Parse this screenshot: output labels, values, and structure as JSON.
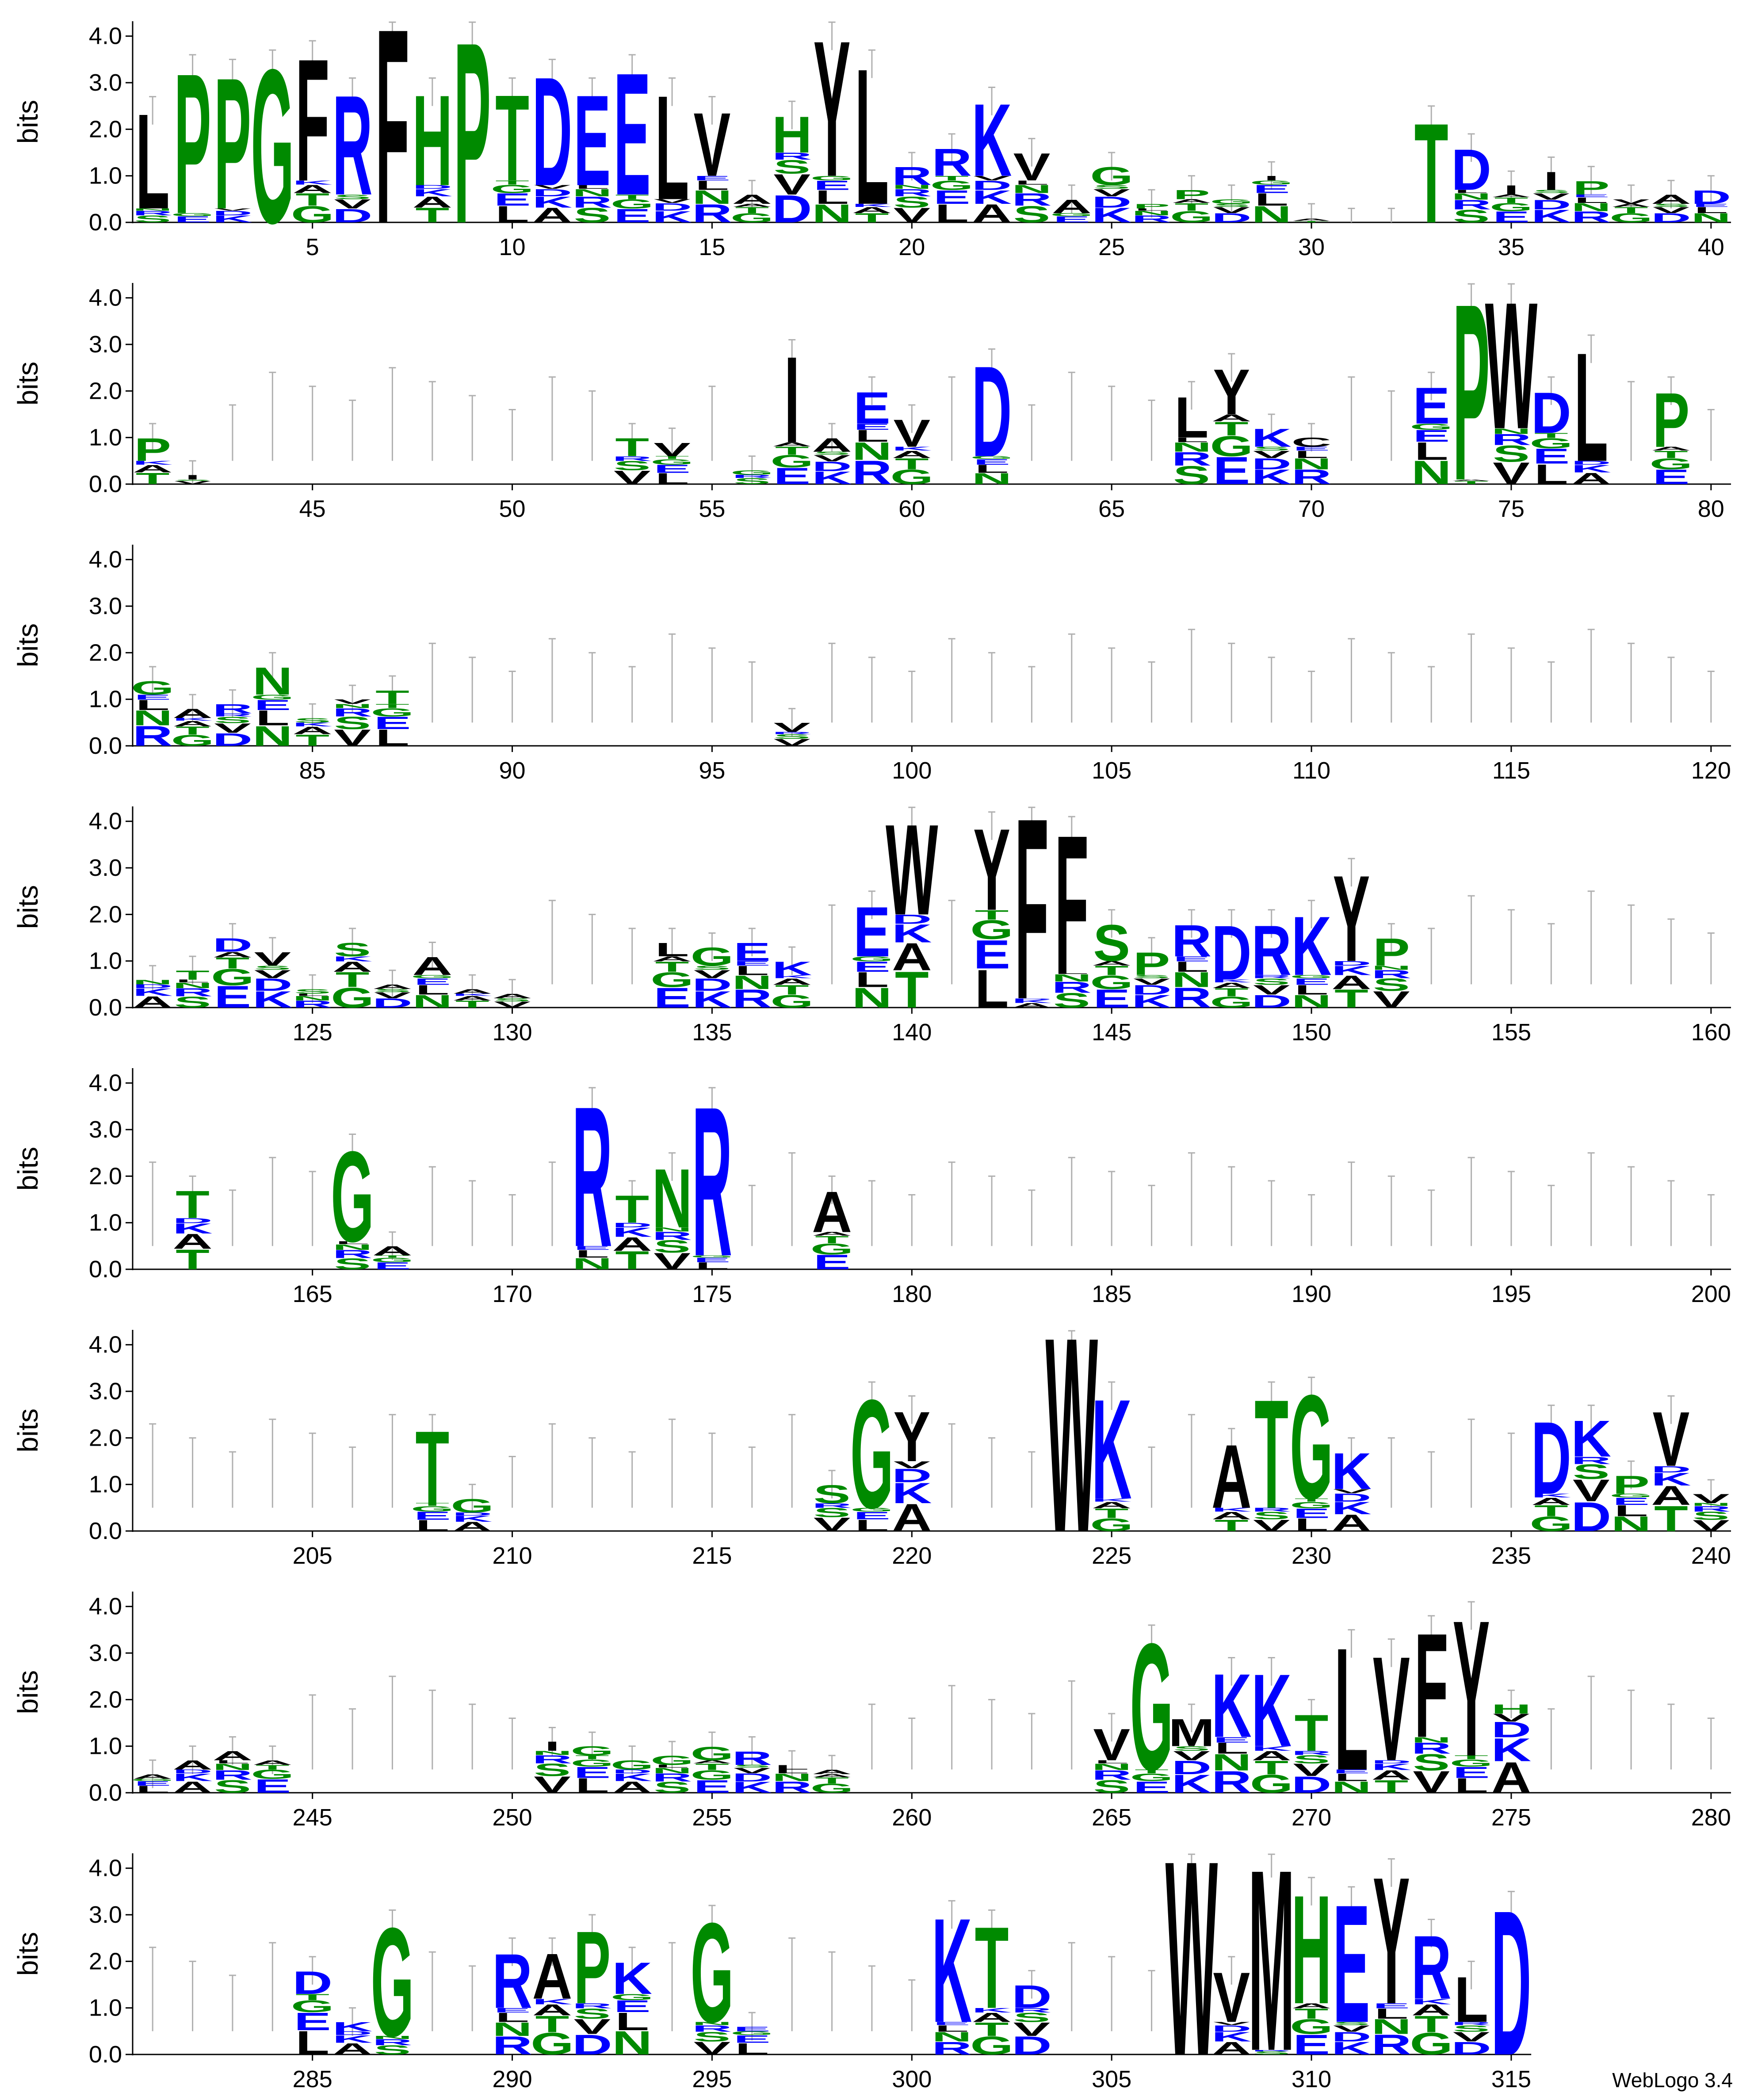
{
  "chart_data": {
    "type": "sequence-logo",
    "ylabel": "bits",
    "yticks": [
      "0.0",
      "1.0",
      "2.0",
      "3.0",
      "4.0"
    ],
    "ylim": [
      0,
      4.32
    ],
    "xlim": [
      1,
      315
    ],
    "rows": [
      {
        "start": 1,
        "end": 40,
        "ticks": [
          5,
          10,
          15,
          20,
          25,
          30,
          35,
          40
        ]
      },
      {
        "start": 41,
        "end": 80,
        "ticks": [
          45,
          50,
          55,
          60,
          65,
          70,
          75,
          80
        ]
      },
      {
        "start": 81,
        "end": 120,
        "ticks": [
          85,
          90,
          95,
          100,
          105,
          110,
          115,
          120
        ]
      },
      {
        "start": 121,
        "end": 160,
        "ticks": [
          125,
          130,
          135,
          140,
          145,
          150,
          155,
          160
        ]
      },
      {
        "start": 161,
        "end": 200,
        "ticks": [
          165,
          170,
          175,
          180,
          185,
          190,
          195,
          200
        ]
      },
      {
        "start": 201,
        "end": 240,
        "ticks": [
          205,
          210,
          215,
          220,
          225,
          230,
          235,
          240
        ]
      },
      {
        "start": 241,
        "end": 280,
        "ticks": [
          245,
          250,
          255,
          260,
          265,
          270,
          275,
          280
        ]
      },
      {
        "start": 281,
        "end": 315,
        "ticks": [
          285,
          290,
          295,
          300,
          305,
          310,
          315
        ]
      }
    ],
    "residue_colors": {
      "hydrophobic": "#000000",
      "polar": "#008a00",
      "charged": "#0000ff",
      "errorbar": "#b0b0b0"
    },
    "color_groups": {
      "black": "AVLIMFWPCY",
      "green": "GSTNQHP",
      "blue": "DEKR"
    },
    "positions": [
      {
        "pos": 1,
        "top": "L",
        "top_bits": 2.1,
        "total": 2.4
      },
      {
        "pos": 2,
        "top": "P",
        "top_bits": 3.1,
        "total": 3.3
      },
      {
        "pos": 3,
        "top": "P",
        "top_bits": 2.9,
        "total": 3.2
      },
      {
        "pos": 4,
        "top": "G",
        "top_bits": 3.4,
        "total": 3.4
      },
      {
        "pos": 5,
        "top": "F",
        "top_bits": 2.7,
        "total": 3.6
      },
      {
        "pos": 6,
        "top": "R",
        "top_bits": 2.2,
        "total": 2.8
      },
      {
        "pos": 7,
        "top": "F",
        "top_bits": 4.3,
        "total": 4.3
      },
      {
        "pos": 8,
        "top": "H",
        "top_bits": 2.0,
        "total": 2.8
      },
      {
        "pos": 9,
        "top": "P",
        "top_bits": 4.0,
        "total": 4.0
      },
      {
        "pos": 10,
        "top": "T",
        "top_bits": 1.9,
        "total": 2.8
      },
      {
        "pos": 11,
        "top": "D",
        "top_bits": 2.4,
        "total": 3.2
      },
      {
        "pos": 12,
        "top": "E",
        "top_bits": 2.0,
        "total": 2.8
      },
      {
        "pos": 13,
        "top": "E",
        "top_bits": 2.7,
        "total": 3.3
      },
      {
        "pos": 14,
        "top": "L",
        "top_bits": 2.3,
        "total": 2.8
      },
      {
        "pos": 15,
        "top": "V",
        "top_bits": 1.4,
        "total": 2.4
      },
      {
        "pos": 16,
        "top": "A",
        "top_bits": 0.2,
        "total": 0.6
      },
      {
        "pos": 17,
        "top": "H",
        "top_bits": 0.8,
        "total": 2.3
      },
      {
        "pos": 18,
        "top": "Y",
        "top_bits": 3.0,
        "total": 4.0
      },
      {
        "pos": 19,
        "top": "L",
        "top_bits": 3.0,
        "total": 3.4
      },
      {
        "pos": 20,
        "top": "R",
        "top_bits": 0.4,
        "total": 1.2
      },
      {
        "pos": 21,
        "top": "R",
        "top_bits": 0.6,
        "total": 1.6
      },
      {
        "pos": 22,
        "top": "K",
        "top_bits": 1.6,
        "total": 2.6
      },
      {
        "pos": 23,
        "top": "V",
        "top_bits": 0.6,
        "total": 1.5
      },
      {
        "pos": 24,
        "top": "A",
        "top_bits": 0.3,
        "total": 0.5
      },
      {
        "pos": 25,
        "top": "G",
        "top_bits": 0.4,
        "total": 1.2
      },
      {
        "pos": 26,
        "top": "P",
        "top_bits": 0.1,
        "total": 0.4
      },
      {
        "pos": 27,
        "top": "P",
        "top_bits": 0.2,
        "total": 0.7
      },
      {
        "pos": 28,
        "top": "G",
        "top_bits": 0.1,
        "total": 0.5
      },
      {
        "pos": 29,
        "top": "I",
        "top_bits": 0.1,
        "total": 1.0
      },
      {
        "pos": 30,
        "top": "A",
        "top_bits": 0.05,
        "total": 0.1
      },
      {
        "pos": 31,
        "top": "-",
        "top_bits": 0.0,
        "total": 0.0
      },
      {
        "pos": 32,
        "top": "-",
        "top_bits": 0.0,
        "total": 0.0
      },
      {
        "pos": 33,
        "top": "T",
        "top_bits": 2.2,
        "total": 2.2
      },
      {
        "pos": 34,
        "top": "D",
        "top_bits": 0.9,
        "total": 1.6
      },
      {
        "pos": 35,
        "top": "I",
        "top_bits": 0.2,
        "total": 0.8
      },
      {
        "pos": 36,
        "top": "I",
        "top_bits": 0.4,
        "total": 1.1
      },
      {
        "pos": 37,
        "top": "P",
        "top_bits": 0.3,
        "total": 0.9
      },
      {
        "pos": 38,
        "top": "V",
        "top_bits": 0.1,
        "total": 0.5
      },
      {
        "pos": 39,
        "top": "A",
        "top_bits": 0.2,
        "total": 0.6
      },
      {
        "pos": 40,
        "top": "D",
        "top_bits": 0.3,
        "total": 0.7
      },
      {
        "pos": 41,
        "top": "P",
        "top_bits": 0.5,
        "total": 1.0
      },
      {
        "pos": 42,
        "top": "I",
        "top_bits": 0.1,
        "total": 0.2
      },
      {
        "pos": 53,
        "top": "T",
        "top_bits": 0.4,
        "total": 1.0
      },
      {
        "pos": 54,
        "top": "V",
        "top_bits": 0.3,
        "total": 0.9
      },
      {
        "pos": 56,
        "top": "G",
        "top_bits": 0.1,
        "total": 0.3
      },
      {
        "pos": 57,
        "top": "I",
        "top_bits": 1.9,
        "total": 2.8
      },
      {
        "pos": 58,
        "top": "A",
        "top_bits": 0.3,
        "total": 1.0
      },
      {
        "pos": 59,
        "top": "E",
        "top_bits": 0.7,
        "total": 2.0
      },
      {
        "pos": 60,
        "top": "V",
        "top_bits": 0.6,
        "total": 1.4
      },
      {
        "pos": 62,
        "top": "D",
        "top_bits": 2.0,
        "total": 2.6
      },
      {
        "pos": 67,
        "top": "L",
        "top_bits": 0.9,
        "total": 1.9
      },
      {
        "pos": 68,
        "top": "Y",
        "top_bits": 1.0,
        "total": 2.5
      },
      {
        "pos": 69,
        "top": "K",
        "top_bits": 0.4,
        "total": 1.2
      },
      {
        "pos": 70,
        "top": "C",
        "top_bits": 0.2,
        "total": 1.0
      },
      {
        "pos": 73,
        "top": "E",
        "top_bits": 0.8,
        "total": 2.1
      },
      {
        "pos": 74,
        "top": "P",
        "top_bits": 3.9,
        "total": 4.0
      },
      {
        "pos": 75,
        "top": "W",
        "top_bits": 2.8,
        "total": 4.0
      },
      {
        "pos": 76,
        "top": "D",
        "top_bits": 0.9,
        "total": 2.0
      },
      {
        "pos": 77,
        "top": "L",
        "top_bits": 2.4,
        "total": 2.9
      },
      {
        "pos": 79,
        "top": "P",
        "top_bits": 1.2,
        "total": 2.0
      },
      {
        "pos": 81,
        "top": "G",
        "top_bits": 0.3,
        "total": 1.4
      },
      {
        "pos": 82,
        "top": "A",
        "top_bits": 0.2,
        "total": 0.8
      },
      {
        "pos": 83,
        "top": "R",
        "top_bits": 0.2,
        "total": 0.9
      },
      {
        "pos": 84,
        "top": "N",
        "top_bits": 0.6,
        "total": 1.7
      },
      {
        "pos": 85,
        "top": "S",
        "top_bits": 0.1,
        "total": 0.6
      },
      {
        "pos": 86,
        "top": "V",
        "top_bits": 0.1,
        "total": 1.0
      },
      {
        "pos": 87,
        "top": "T",
        "top_bits": 0.3,
        "total": 1.2
      },
      {
        "pos": 97,
        "top": "V",
        "top_bits": 0.2,
        "total": 0.5
      },
      {
        "pos": 121,
        "top": "N",
        "top_bits": 0.1,
        "total": 0.6
      },
      {
        "pos": 122,
        "top": "T",
        "top_bits": 0.2,
        "total": 0.8
      },
      {
        "pos": 123,
        "top": "D",
        "top_bits": 0.3,
        "total": 1.5
      },
      {
        "pos": 124,
        "top": "V",
        "top_bits": 0.3,
        "total": 1.2
      },
      {
        "pos": 125,
        "top": "S",
        "top_bits": 0.1,
        "total": 0.4
      },
      {
        "pos": 126,
        "top": "S",
        "top_bits": 0.3,
        "total": 1.4
      },
      {
        "pos": 127,
        "top": "A",
        "top_bits": 0.1,
        "total": 0.5
      },
      {
        "pos": 128,
        "top": "A",
        "top_bits": 0.4,
        "total": 1.1
      },
      {
        "pos": 129,
        "top": "A",
        "top_bits": 0.1,
        "total": 0.4
      },
      {
        "pos": 130,
        "top": "A",
        "top_bits": 0.1,
        "total": 0.3
      },
      {
        "pos": 134,
        "top": "L",
        "top_bits": 0.3,
        "total": 1.4
      },
      {
        "pos": 135,
        "top": "G",
        "top_bits": 0.4,
        "total": 1.3
      },
      {
        "pos": 136,
        "top": "E",
        "top_bits": 0.4,
        "total": 1.4
      },
      {
        "pos": 137,
        "top": "K",
        "top_bits": 0.3,
        "total": 1.0
      },
      {
        "pos": 139,
        "top": "E",
        "top_bits": 1.1,
        "total": 2.2
      },
      {
        "pos": 140,
        "top": "W",
        "top_bits": 2.0,
        "total": 4.0
      },
      {
        "pos": 142,
        "top": "Y",
        "top_bits": 1.8,
        "total": 3.9
      },
      {
        "pos": 143,
        "top": "F",
        "top_bits": 4.0,
        "total": 4.2
      },
      {
        "pos": 144,
        "top": "F",
        "top_bits": 3.0,
        "total": 3.8
      },
      {
        "pos": 145,
        "top": "S",
        "top_bits": 0.8,
        "total": 1.8
      },
      {
        "pos": 146,
        "top": "P",
        "top_bits": 0.5,
        "total": 1.2
      },
      {
        "pos": 147,
        "top": "R",
        "top_bits": 0.7,
        "total": 1.8
      },
      {
        "pos": 148,
        "top": "D",
        "top_bits": 1.2,
        "total": 1.8
      },
      {
        "pos": 149,
        "top": "R",
        "top_bits": 1.1,
        "total": 1.8
      },
      {
        "pos": 150,
        "top": "K",
        "top_bits": 1.3,
        "total": 2.0
      },
      {
        "pos": 151,
        "top": "Y",
        "top_bits": 1.9,
        "total": 2.9
      },
      {
        "pos": 152,
        "top": "P",
        "top_bits": 0.6,
        "total": 1.5
      },
      {
        "pos": 162,
        "top": "T",
        "top_bits": 0.6,
        "total": 1.7
      },
      {
        "pos": 166,
        "top": "G",
        "top_bits": 2.0,
        "total": 2.6
      },
      {
        "pos": 167,
        "top": "A",
        "top_bits": 0.2,
        "total": 0.5
      },
      {
        "pos": 172,
        "top": "R",
        "top_bits": 3.1,
        "total": 3.6
      },
      {
        "pos": 173,
        "top": "T",
        "top_bits": 0.6,
        "total": 1.6
      },
      {
        "pos": 174,
        "top": "N",
        "top_bits": 1.3,
        "total": 2.2
      },
      {
        "pos": 175,
        "top": "R",
        "top_bits": 3.3,
        "total": 3.6
      },
      {
        "pos": 178,
        "top": "A",
        "top_bits": 0.9,
        "total": 1.7
      },
      {
        "pos": 208,
        "top": "T",
        "top_bits": 1.6,
        "total": 2.2
      },
      {
        "pos": 209,
        "top": "G",
        "top_bits": 0.3,
        "total": 0.7
      },
      {
        "pos": 218,
        "top": "S",
        "top_bits": 0.4,
        "total": 1.0
      },
      {
        "pos": 219,
        "top": "G",
        "top_bits": 2.4,
        "total": 2.9
      },
      {
        "pos": 220,
        "top": "Y",
        "top_bits": 1.1,
        "total": 2.6
      },
      {
        "pos": 224,
        "top": "W",
        "top_bits": 4.3,
        "total": 4.3
      },
      {
        "pos": 225,
        "top": "K",
        "top_bits": 2.2,
        "total": 2.9
      },
      {
        "pos": 228,
        "top": "A",
        "top_bits": 1.4,
        "total": 1.9
      },
      {
        "pos": 229,
        "top": "T",
        "top_bits": 2.4,
        "total": 2.9
      },
      {
        "pos": 230,
        "top": "G",
        "top_bits": 2.3,
        "total": 3.0
      },
      {
        "pos": 231,
        "top": "K",
        "top_bits": 0.8,
        "total": 1.7
      },
      {
        "pos": 236,
        "top": "D",
        "top_bits": 1.6,
        "total": 2.4
      },
      {
        "pos": 237,
        "top": "K",
        "top_bits": 0.8,
        "total": 2.4
      },
      {
        "pos": 238,
        "top": "P",
        "top_bits": 0.4,
        "total": 1.2
      },
      {
        "pos": 239,
        "top": "V",
        "top_bits": 1.2,
        "total": 2.6
      },
      {
        "pos": 240,
        "top": "V",
        "top_bits": 0.2,
        "total": 0.8
      },
      {
        "pos": 241,
        "top": "A",
        "top_bits": 0.1,
        "total": 0.4
      },
      {
        "pos": 242,
        "top": "A",
        "top_bits": 0.2,
        "total": 0.7
      },
      {
        "pos": 243,
        "top": "A",
        "top_bits": 0.2,
        "total": 0.9
      },
      {
        "pos": 244,
        "top": "A",
        "top_bits": 0.1,
        "total": 0.7
      },
      {
        "pos": 251,
        "top": "I",
        "top_bits": 0.2,
        "total": 1.1
      },
      {
        "pos": 252,
        "top": "G",
        "top_bits": 0.2,
        "total": 1.0
      },
      {
        "pos": 253,
        "top": "G",
        "top_bits": 0.2,
        "total": 0.7
      },
      {
        "pos": 254,
        "top": "G",
        "top_bits": 0.2,
        "total": 0.8
      },
      {
        "pos": 255,
        "top": "G",
        "top_bits": 0.3,
        "total": 1.0
      },
      {
        "pos": 256,
        "top": "R",
        "top_bits": 0.3,
        "total": 0.9
      },
      {
        "pos": 257,
        "top": "L",
        "top_bits": 0.1,
        "total": 0.6
      },
      {
        "pos": 258,
        "top": "A",
        "top_bits": 0.1,
        "total": 0.5
      },
      {
        "pos": 265,
        "top": "V",
        "top_bits": 0.7,
        "total": 1.4
      },
      {
        "pos": 266,
        "top": "G",
        "top_bits": 2.8,
        "total": 3.3
      },
      {
        "pos": 267,
        "top": "M",
        "top_bits": 0.6,
        "total": 1.6
      },
      {
        "pos": 268,
        "top": "K",
        "top_bits": 1.4,
        "total": 2.6
      },
      {
        "pos": 269,
        "top": "K",
        "top_bits": 1.6,
        "total": 2.6
      },
      {
        "pos": 270,
        "top": "T",
        "top_bits": 0.8,
        "total": 1.7
      },
      {
        "pos": 271,
        "top": "L",
        "top_bits": 2.7,
        "total": 3.2
      },
      {
        "pos": 272,
        "top": "V",
        "top_bits": 2.3,
        "total": 3.0
      },
      {
        "pos": 273,
        "top": "F",
        "top_bits": 2.3,
        "total": 3.5
      },
      {
        "pos": 274,
        "top": "Y",
        "top_bits": 3.0,
        "total": 3.8
      },
      {
        "pos": 275,
        "top": "H",
        "top_bits": 0.2,
        "total": 1.9
      },
      {
        "pos": 285,
        "top": "D",
        "top_bits": 0.5,
        "total": 1.8
      },
      {
        "pos": 286,
        "top": "K",
        "top_bits": 0.2,
        "total": 0.7
      },
      {
        "pos": 287,
        "top": "G",
        "top_bits": 2.4,
        "total": 2.8
      },
      {
        "pos": 290,
        "top": "R",
        "top_bits": 1.2,
        "total": 2.2
      },
      {
        "pos": 291,
        "top": "A",
        "top_bits": 1.0,
        "total": 2.2
      },
      {
        "pos": 292,
        "top": "P",
        "top_bits": 1.6,
        "total": 2.7
      },
      {
        "pos": 293,
        "top": "K",
        "top_bits": 0.7,
        "total": 2.0
      },
      {
        "pos": 295,
        "top": "G",
        "top_bits": 2.2,
        "total": 2.9
      },
      {
        "pos": 296,
        "top": "E",
        "top_bits": 0.1,
        "total": 0.6
      },
      {
        "pos": 301,
        "top": "K",
        "top_bits": 2.3,
        "total": 3.0
      },
      {
        "pos": 302,
        "top": "T",
        "top_bits": 1.8,
        "total": 2.8
      },
      {
        "pos": 303,
        "top": "D",
        "top_bits": 0.5,
        "total": 1.5
      },
      {
        "pos": 307,
        "top": "W",
        "top_bits": 4.3,
        "total": 4.3
      },
      {
        "pos": 308,
        "top": "V",
        "top_bits": 1.1,
        "total": 1.8
      },
      {
        "pos": 309,
        "top": "M",
        "top_bits": 4.0,
        "total": 4.1
      },
      {
        "pos": 310,
        "top": "H",
        "top_bits": 2.4,
        "total": 3.5
      },
      {
        "pos": 311,
        "top": "E",
        "top_bits": 2.6,
        "total": 3.3
      },
      {
        "pos": 312,
        "top": "Y",
        "top_bits": 2.8,
        "total": 3.9
      },
      {
        "pos": 313,
        "top": "R",
        "top_bits": 1.4,
        "total": 2.6
      },
      {
        "pos": 314,
        "top": "L",
        "top_bits": 1.0,
        "total": 1.7
      },
      {
        "pos": 315,
        "top": "D",
        "top_bits": 3.2,
        "total": 3.2
      }
    ]
  },
  "footer": {
    "credit": "WebLogo 3.4"
  }
}
